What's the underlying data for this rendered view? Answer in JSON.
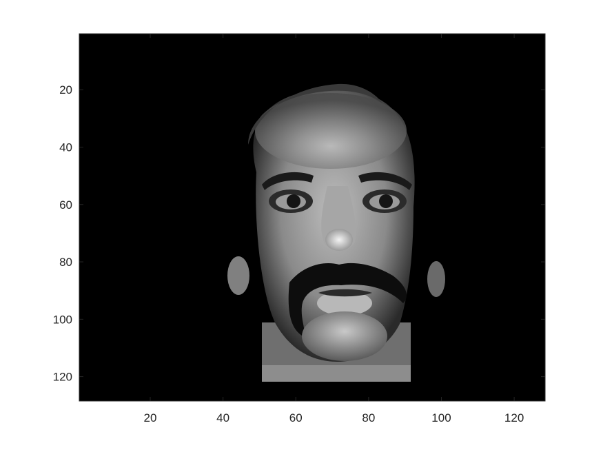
{
  "figure": {
    "description_free": true,
    "colormap": "gray",
    "image_size": {
      "rows": 128,
      "cols": 128
    },
    "axes": {
      "xlim": [
        0.5,
        128.5
      ],
      "ylim": [
        0.5,
        128.5
      ],
      "y_direction": "reverse",
      "xticks": [
        "20",
        "40",
        "60",
        "80",
        "100",
        "120"
      ],
      "yticks": [
        "20",
        "40",
        "60",
        "80",
        "100",
        "120"
      ],
      "box": true,
      "grid": false
    },
    "colors": {
      "axes_color": "#262626",
      "background": "#ffffff"
    }
  }
}
